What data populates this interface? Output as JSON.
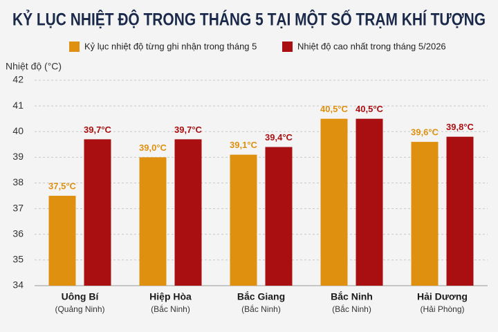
{
  "chart_data": {
    "type": "bar",
    "title": "KỶ LỤC NHIỆT ĐỘ TRONG THÁNG 5 TẠI MỘT SỐ TRẠM KHÍ TƯỢNG",
    "y_label": "Nhiệt độ (°C)",
    "categories": [
      "Uông Bí",
      "Hiệp Hòa",
      "Bắc Giang",
      "Bắc Ninh",
      "Hải Dương"
    ],
    "category_subtitles": [
      "(Quảng Ninh)",
      "(Bắc Ninh)",
      "(Bắc Ninh)",
      "(Bắc Ninh)",
      "(Hải Phòng)"
    ],
    "series": [
      {
        "name": "Kỷ lục nhiệt độ từng ghi nhận trong tháng 5",
        "color": "#e0900f",
        "values": [
          37.5,
          39.0,
          39.1,
          40.5,
          39.6
        ],
        "value_labels": [
          "37,5°C",
          "39,0°C",
          "39,1°C",
          "40,5°C",
          "39,6°C"
        ]
      },
      {
        "name": "Nhiệt độ cao nhất trong tháng 5/2026",
        "color": "#a90f10",
        "values": [
          39.7,
          39.7,
          39.4,
          40.5,
          39.8
        ],
        "value_labels": [
          "39,7°C",
          "39,7°C",
          "39,4°C",
          "40,5°C",
          "39,8°C"
        ]
      }
    ],
    "ylim": [
      34,
      42
    ],
    "yticks": [
      34,
      35,
      36,
      37,
      38,
      39,
      40,
      41,
      42
    ],
    "grid": true,
    "legend_position": "top"
  }
}
